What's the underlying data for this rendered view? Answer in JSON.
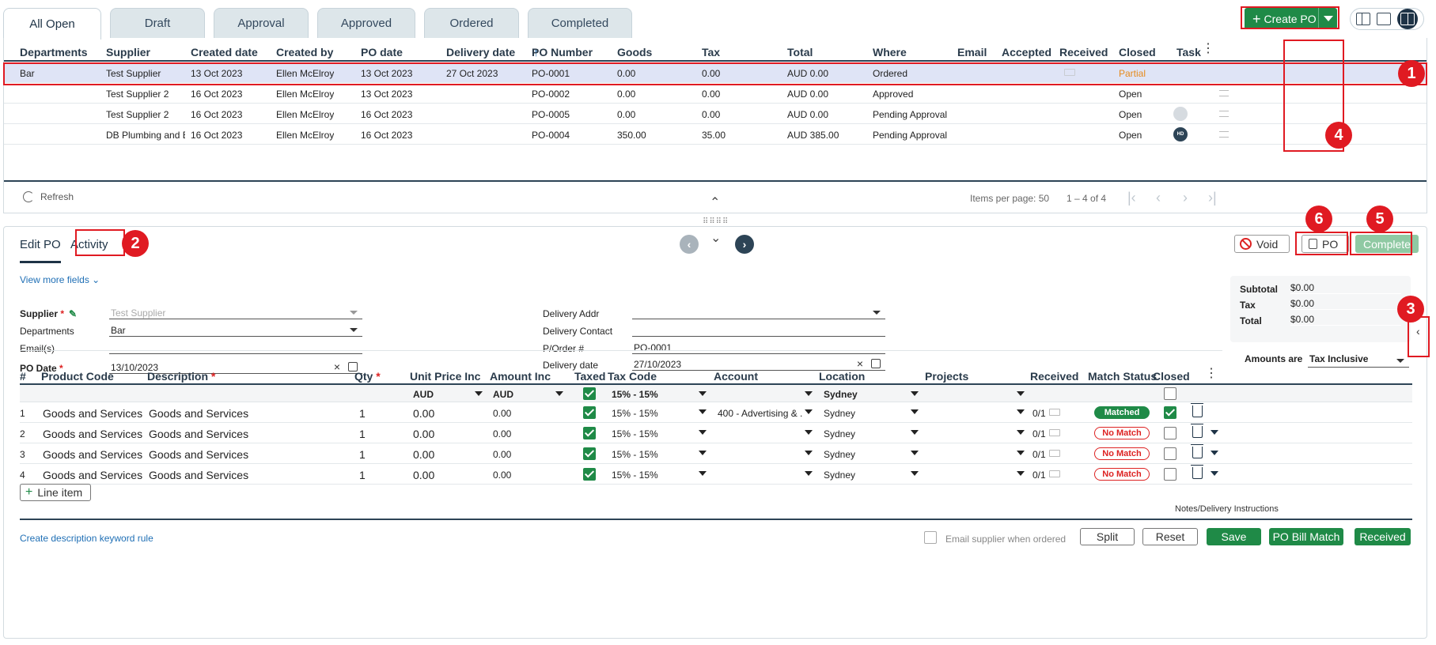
{
  "tabs": [
    "All Open",
    "Draft",
    "Approval",
    "Approved",
    "Ordered",
    "Completed"
  ],
  "toolbar": {
    "create_label": "Create PO"
  },
  "grid": {
    "columns": [
      "Departments",
      "Supplier",
      "Created date",
      "Created by",
      "PO date",
      "Delivery date",
      "PO Number",
      "Goods",
      "Tax",
      "Total",
      "Where",
      "Email",
      "Accepted",
      "Received",
      "Closed",
      "Task"
    ],
    "sort_arrow": "↑",
    "rows": [
      {
        "dept": "Bar",
        "supplier": "Test Supplier",
        "created": "13 Oct 2023",
        "by": "Ellen McElroy",
        "po_date": "13 Oct 2023",
        "delivery": "27 Oct 2023",
        "po_num": "PO-0001",
        "goods": "0.00",
        "tax": "0.00",
        "total": "AUD 0.00",
        "where": "Ordered",
        "closed": "Partial"
      },
      {
        "dept": "",
        "supplier": "Test Supplier 2",
        "created": "16 Oct 2023",
        "by": "Ellen McElroy",
        "po_date": "13 Oct 2023",
        "delivery": "",
        "po_num": "PO-0002",
        "goods": "0.00",
        "tax": "0.00",
        "total": "AUD 0.00",
        "where": "Approved",
        "closed": "Open"
      },
      {
        "dept": "",
        "supplier": "Test Supplier 2",
        "created": "16 Oct 2023",
        "by": "Ellen McElroy",
        "po_date": "16 Oct 2023",
        "delivery": "",
        "po_num": "PO-0005",
        "goods": "0.00",
        "tax": "0.00",
        "total": "AUD 0.00",
        "where": "Pending Approval",
        "closed": "Open"
      },
      {
        "dept": "",
        "supplier": "DB Plumbing and Bu...",
        "created": "16 Oct 2023",
        "by": "Ellen McElroy",
        "po_date": "16 Oct 2023",
        "delivery": "",
        "po_num": "PO-0004",
        "goods": "350.00",
        "tax": "35.00",
        "total": "AUD 385.00",
        "where": "Pending Approval",
        "closed": "Open"
      }
    ],
    "avatar_initials": "HD",
    "refresh_label": "Refresh",
    "items_per_page": "Items per page: 50",
    "range": "1 – 4 of 4"
  },
  "edit": {
    "tabs": [
      "Edit PO",
      "Activity"
    ],
    "void_label": "Void",
    "po_label": "PO",
    "complete_label": "Complete",
    "view_more": "View more fields",
    "fields": {
      "supplier_label": "Supplier",
      "supplier_value": "Test Supplier",
      "departments_label": "Departments",
      "departments_value": "Bar",
      "emails_label": "Email(s)",
      "po_date_label": "PO Date",
      "po_date_value": "13/10/2023",
      "delivery_addr_label": "Delivery Addr",
      "delivery_contact_label": "Delivery Contact",
      "porder_label": "P/Order #",
      "porder_value": "PO-0001",
      "delivery_date_label": "Delivery date",
      "delivery_date_value": "27/10/2023"
    },
    "totals": {
      "subtotal_label": "Subtotal",
      "subtotal": "$0.00",
      "tax_label": "Tax",
      "tax": "$0.00",
      "total_label": "Total",
      "total": "$0.00",
      "amounts_label": "Amounts are",
      "amounts_value": "Tax Inclusive"
    },
    "line_columns": [
      "#",
      "Product Code",
      "Description",
      "Qty",
      "Unit Price Inc",
      "Amount Inc",
      "Taxed",
      "Tax Code",
      "Account",
      "Location",
      "Projects",
      "Received",
      "Match Status",
      "Closed"
    ],
    "filter": {
      "unit_price": "AUD",
      "amount": "AUD",
      "tax_code": "15% - 15%",
      "location": "Sydney"
    },
    "lines": [
      {
        "num": "1",
        "code": "Goods and Services",
        "desc": "Goods and Services",
        "qty": "1",
        "unit": "0.00",
        "amount": "0.00",
        "tax_code": "15% - 15%",
        "account": "400 - Advertising & ...",
        "location": "Sydney",
        "received": "0/1",
        "match": "Matched",
        "closed": true
      },
      {
        "num": "2",
        "code": "Goods and Services",
        "desc": "Goods and Services",
        "qty": "1",
        "unit": "0.00",
        "amount": "0.00",
        "tax_code": "15% - 15%",
        "account": "",
        "location": "Sydney",
        "received": "0/1",
        "match": "No Match",
        "closed": false
      },
      {
        "num": "3",
        "code": "Goods and Services",
        "desc": "Goods and Services",
        "qty": "1",
        "unit": "0.00",
        "amount": "0.00",
        "tax_code": "15% - 15%",
        "account": "",
        "location": "Sydney",
        "received": "0/1",
        "match": "No Match",
        "closed": false
      },
      {
        "num": "4",
        "code": "Goods and Services",
        "desc": "Goods and Services",
        "qty": "1",
        "unit": "0.00",
        "amount": "0.00",
        "tax_code": "15% - 15%",
        "account": "",
        "location": "Sydney",
        "received": "0/1",
        "match": "No Match",
        "closed": false
      }
    ],
    "add_line_label": "Line item",
    "notes_label": "Notes/Delivery Instructions",
    "keyword_rule": "Create description keyword rule",
    "email_supplier_label": "Email supplier when ordered",
    "buttons": {
      "split": "Split",
      "reset": "Reset",
      "save": "Save",
      "bill_match": "PO Bill Match",
      "received": "Received"
    }
  },
  "annotations": [
    "1",
    "2",
    "3",
    "4",
    "5",
    "6"
  ],
  "colors": {
    "accent_green": "#1f8a47",
    "dark_navy": "#1e3346",
    "annotation_red": "#e01a22",
    "partial_orange": "#e68a1c"
  }
}
